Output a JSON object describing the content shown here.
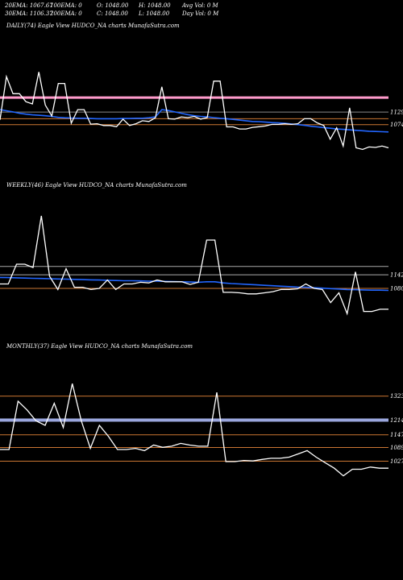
{
  "header": {
    "ema20": "20EMA: 1067.67",
    "ema100": "100EMA: 0",
    "open": "O: 1048.00",
    "high": "H: 1048.00",
    "avg_vol": "Avg Vol: 0  M",
    "ema30": "30EMA: 1106.37",
    "ema200": "200EMA: 0",
    "close": "C: 1048.00",
    "low": "L: 1048.00",
    "day_vol": "Day Vol: 0  M"
  },
  "chart_data": [
    {
      "type": "line",
      "title": "DAILY(74) Eagle   View  HUDCO_NA charts MunafaSutra.com",
      "ylim": [
        850,
        1480
      ],
      "tick_labels": [
        "1129",
        "1074"
      ],
      "price_series": [
        1095,
        1285,
        1210,
        1210,
        1175,
        1165,
        1305,
        1160,
        1112,
        1255,
        1255,
        1080,
        1140,
        1140,
        1076,
        1078,
        1070,
        1070,
        1065,
        1098,
        1070,
        1078,
        1091,
        1088,
        1104,
        1240,
        1100,
        1098,
        1108,
        1105,
        1110,
        1098,
        1105,
        1265,
        1265,
        1064,
        1064,
        1055,
        1055,
        1062,
        1065,
        1068,
        1075,
        1075,
        1078,
        1075,
        1078,
        1100,
        1100,
        1082,
        1070,
        1010,
        1060,
        980,
        1148,
        972,
        965,
        976,
        974,
        980,
        972
      ],
      "ema_series": [
        1140,
        1135,
        1130,
        1124,
        1120,
        1117,
        1115,
        1113,
        1110,
        1106,
        1104,
        1103,
        1102,
        1102,
        1101,
        1100,
        1100,
        1100,
        1100,
        1101,
        1101,
        1102,
        1102,
        1104,
        1108,
        1140,
        1136,
        1130,
        1124,
        1118,
        1113,
        1110,
        1108,
        1105,
        1102,
        1100,
        1097,
        1094,
        1091,
        1088,
        1087,
        1085,
        1083,
        1082,
        1080,
        1077,
        1074,
        1071,
        1067,
        1064,
        1061,
        1058,
        1055,
        1053,
        1051,
        1049,
        1047,
        1045,
        1044,
        1043,
        1042
      ],
      "hlines": [
        {
          "value": 1193,
          "color": "#ff9acb",
          "width": 3
        },
        {
          "value": 1129,
          "color": "#888888",
          "width": 1
        },
        {
          "value": 1100,
          "color": "#cc7733",
          "width": 1
        },
        {
          "value": 1074,
          "color": "#cc7733",
          "width": 1
        }
      ]
    },
    {
      "type": "line",
      "title": "WEEKLY(46) Eagle   View  HUDCO_NA charts MunafaSutra.com",
      "ylim": [
        860,
        1520
      ],
      "tick_labels": [
        "1142",
        "1080"
      ],
      "price_series": [
        1100,
        1100,
        1190,
        1190,
        1175,
        1410,
        1135,
        1075,
        1170,
        1085,
        1085,
        1075,
        1080,
        1118,
        1075,
        1100,
        1100,
        1108,
        1105,
        1118,
        1110,
        1110,
        1110,
        1098,
        1108,
        1300,
        1300,
        1062,
        1062,
        1060,
        1055,
        1055,
        1060,
        1065,
        1075,
        1075,
        1078,
        1100,
        1080,
        1075,
        1015,
        1060,
        965,
        1155,
        975,
        975,
        985,
        985
      ],
      "ema_series": [
        1130,
        1129,
        1128,
        1127,
        1126,
        1125,
        1124,
        1123,
        1122,
        1121,
        1120,
        1119,
        1118,
        1117,
        1116,
        1115,
        1115,
        1114,
        1113,
        1113,
        1112,
        1111,
        1110,
        1109,
        1108,
        1110,
        1110,
        1105,
        1102,
        1100,
        1098,
        1096,
        1094,
        1092,
        1090,
        1088,
        1086,
        1085,
        1083,
        1081,
        1079,
        1077,
        1075,
        1074,
        1073,
        1072,
        1072,
        1071
      ],
      "hlines": [
        {
          "value": 1180,
          "color": "#aaaaaa",
          "width": 1
        },
        {
          "value": 1142,
          "color": "#aaaaaa",
          "width": 1
        },
        {
          "value": 1080,
          "color": "#cc7733",
          "width": 1
        }
      ]
    },
    {
      "type": "line",
      "title": "MONTHLY(37) Eagle   View  HUDCO_NA charts MunafaSutra.com",
      "ylim": [
        860,
        1520
      ],
      "tick_labels": [
        "1323",
        "1214",
        "1147",
        "1089",
        "1027"
      ],
      "price_series": [
        1080,
        1080,
        1300,
        1260,
        1210,
        1190,
        1290,
        1180,
        1380,
        1210,
        1085,
        1190,
        1140,
        1080,
        1080,
        1085,
        1075,
        1100,
        1090,
        1095,
        1108,
        1100,
        1095,
        1095,
        1340,
        1025,
        1025,
        1030,
        1028,
        1035,
        1040,
        1040,
        1045,
        1060,
        1075,
        1045,
        1020,
        995,
        960,
        990,
        990,
        1000,
        995,
        995
      ],
      "ema_series": [],
      "hlines": [
        {
          "value": 1323,
          "color": "#cc7733",
          "width": 1
        },
        {
          "value": 1214,
          "color": "#9aa6dd",
          "width": 4
        },
        {
          "value": 1147,
          "color": "#cc7733",
          "width": 1
        },
        {
          "value": 1089,
          "color": "#cc7733",
          "width": 1
        },
        {
          "value": 1027,
          "color": "#cc7733",
          "width": 1
        }
      ]
    }
  ]
}
